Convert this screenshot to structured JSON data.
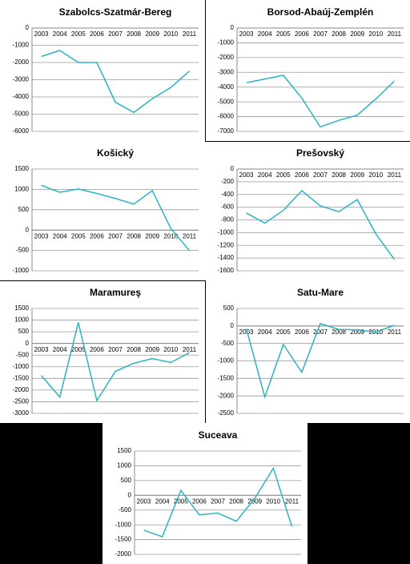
{
  "chart_data": [
    {
      "type": "line",
      "title": "Szabolcs-Szatmár-Bereg",
      "categories": [
        "2003",
        "2004",
        "2005",
        "2006",
        "2007",
        "2008",
        "2009",
        "2010",
        "2011"
      ],
      "values": [
        -1650,
        -1300,
        -2000,
        -2000,
        -4300,
        -4900,
        -4100,
        -3450,
        -2500
      ],
      "color": "#2bb3c0",
      "ylim": [
        -6000,
        0
      ],
      "yticks": [
        -6000,
        -5000,
        -4000,
        -3000,
        -2000,
        -1000,
        0
      ],
      "grid": true
    },
    {
      "type": "line",
      "title": "Borsod-Abaúj-Zemplén",
      "categories": [
        "2003",
        "2004",
        "2005",
        "2006",
        "2007",
        "2008",
        "2009",
        "2010",
        "2011"
      ],
      "values": [
        -3700,
        -3450,
        -3200,
        -4750,
        -6700,
        -6250,
        -5900,
        -4800,
        -3600
      ],
      "color": "#2bb3c0",
      "ylim": [
        -7000,
        0
      ],
      "yticks": [
        -7000,
        -6000,
        -5000,
        -4000,
        -3000,
        -2000,
        -1000,
        0
      ],
      "grid": true
    },
    {
      "type": "line",
      "title": "Košický",
      "categories": [
        "2003",
        "2004",
        "2005",
        "2006",
        "2007",
        "2008",
        "2009",
        "2010",
        "2011"
      ],
      "values": [
        1100,
        930,
        1010,
        900,
        780,
        640,
        970,
        40,
        -500
      ],
      "color": "#2bb3c0",
      "ylim": [
        -1000,
        1500
      ],
      "yticks": [
        -1000,
        -500,
        0,
        500,
        1000,
        1500
      ],
      "grid": true
    },
    {
      "type": "line",
      "title": "Prešovský",
      "categories": [
        "2003",
        "2004",
        "2005",
        "2006",
        "2007",
        "2008",
        "2009",
        "2010",
        "2011"
      ],
      "values": [
        -690,
        -850,
        -650,
        -340,
        -580,
        -670,
        -480,
        -1020,
        -1420
      ],
      "color": "#2bb3c0",
      "ylim": [
        -1600,
        0
      ],
      "yticks": [
        -1600,
        -1400,
        -1200,
        -1000,
        -800,
        -600,
        -400,
        -200,
        0
      ],
      "grid": true
    },
    {
      "type": "line",
      "title": "Maramureş",
      "categories": [
        "2003",
        "2004",
        "2005",
        "2006",
        "2007",
        "2008",
        "2009",
        "2010",
        "2011"
      ],
      "values": [
        -1380,
        -2300,
        900,
        -2450,
        -1200,
        -850,
        -650,
        -820,
        -400
      ],
      "color": "#2bb3c0",
      "ylim": [
        -3000,
        1500
      ],
      "yticks": [
        -3000,
        -2500,
        -2000,
        -1500,
        -1000,
        -500,
        0,
        500,
        1000,
        1500
      ],
      "grid": true
    },
    {
      "type": "line",
      "title": "Satu-Mare",
      "categories": [
        "2003",
        "2004",
        "2005",
        "2006",
        "2007",
        "2008",
        "2009",
        "2010",
        "2011"
      ],
      "values": [
        -80,
        -2030,
        -530,
        -1320,
        70,
        -100,
        -110,
        -180,
        20
      ],
      "color": "#2bb3c0",
      "ylim": [
        -2500,
        500
      ],
      "yticks": [
        -2500,
        -2000,
        -1500,
        -1000,
        -500,
        0,
        500
      ],
      "grid": true
    },
    {
      "type": "line",
      "title": "Suceava",
      "categories": [
        "2003",
        "2004",
        "2005",
        "2006",
        "2007",
        "2008",
        "2009",
        "2010",
        "2011"
      ],
      "values": [
        -1180,
        -1400,
        170,
        -660,
        -600,
        -880,
        -100,
        920,
        -1050
      ],
      "color": "#2bb3c0",
      "ylim": [
        -2000,
        1500
      ],
      "yticks": [
        -2000,
        -1500,
        -1000,
        -500,
        0,
        500,
        1000,
        1500
      ],
      "grid": true
    }
  ]
}
